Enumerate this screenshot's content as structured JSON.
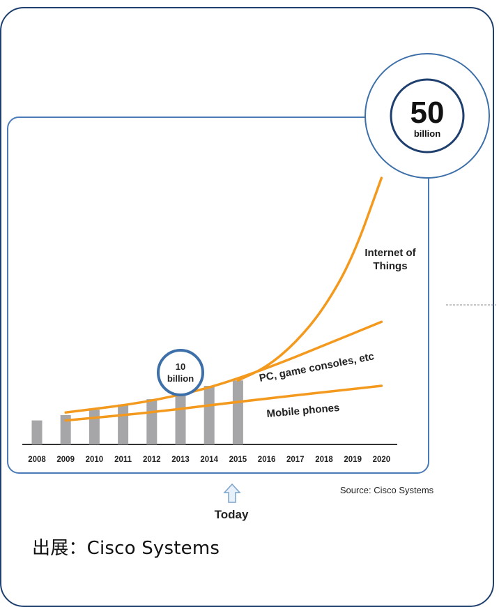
{
  "chart_data": {
    "type": "bar",
    "categories": [
      "2008",
      "2009",
      "2010",
      "2011",
      "2012",
      "2013",
      "2014",
      "2015",
      "2016",
      "2017",
      "2018",
      "2019",
      "2020"
    ],
    "bars": [
      {
        "x": "2008",
        "value": 4.5
      },
      {
        "x": "2009",
        "value": 5.5
      },
      {
        "x": "2010",
        "value": 6.5
      },
      {
        "x": "2011",
        "value": 7.5
      },
      {
        "x": "2012",
        "value": 8.5
      },
      {
        "x": "2013",
        "value": 10
      },
      {
        "x": "2014",
        "value": 11
      },
      {
        "x": "2015",
        "value": 12
      }
    ],
    "series": [
      {
        "name": "Internet of Things",
        "points": [
          [
            2015,
            12
          ],
          [
            2016,
            14.5
          ],
          [
            2017,
            19
          ],
          [
            2018,
            25.5
          ],
          [
            2019,
            35
          ],
          [
            2020,
            50
          ]
        ]
      },
      {
        "name": "PC, game consoles, etc",
        "points": [
          [
            2009,
            6
          ],
          [
            2012,
            8
          ],
          [
            2015,
            12
          ],
          [
            2020,
            23
          ]
        ]
      },
      {
        "name": "Mobile phones",
        "points": [
          [
            2009,
            4.5
          ],
          [
            2012,
            6
          ],
          [
            2015,
            8
          ],
          [
            2020,
            11
          ]
        ]
      }
    ],
    "ylim": [
      0,
      50
    ],
    "annotations": {
      "big": {
        "number": "50",
        "unit": "billion"
      },
      "small": {
        "text1": "10",
        "text2": "billion"
      },
      "today": "Today",
      "source": "Source: Cisco Systems"
    },
    "colors": {
      "bar": "#a6a6a8",
      "line": "#f39a1e",
      "frame": "#3d6fa8",
      "axis": "#333333"
    }
  },
  "caption": "出展：Cisco Systems"
}
